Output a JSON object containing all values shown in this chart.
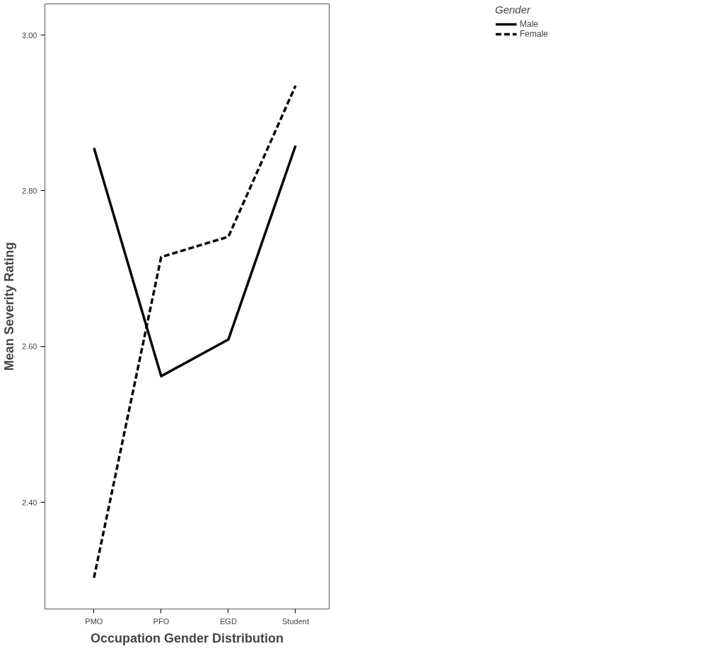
{
  "chart_data": {
    "type": "line",
    "xlabel": "Occupation Gender Distribution",
    "ylabel": "Mean Severity Rating",
    "legend_title": "Gender",
    "categories": [
      "PMO",
      "PFO",
      "EGD",
      "Student"
    ],
    "series": [
      {
        "name": "Male",
        "color": "#000000",
        "values": [
          2.855,
          2.562,
          2.609,
          2.858
        ],
        "line_style": "solid"
      },
      {
        "name": "Female",
        "color": "#000000",
        "values": [
          2.303,
          2.715,
          2.741,
          2.935
        ],
        "line_style": "dashed"
      }
    ],
    "ylim": [
      2.263,
      3.04
    ],
    "yticks": [
      {
        "value": 2.4,
        "label": "2.40"
      },
      {
        "value": 2.6,
        "label": "2.60"
      },
      {
        "value": 2.8,
        "label": "2.80"
      },
      {
        "value": 3.0,
        "label": "3.00"
      }
    ],
    "grid": false,
    "legend": "top right",
    "marker": "none"
  }
}
